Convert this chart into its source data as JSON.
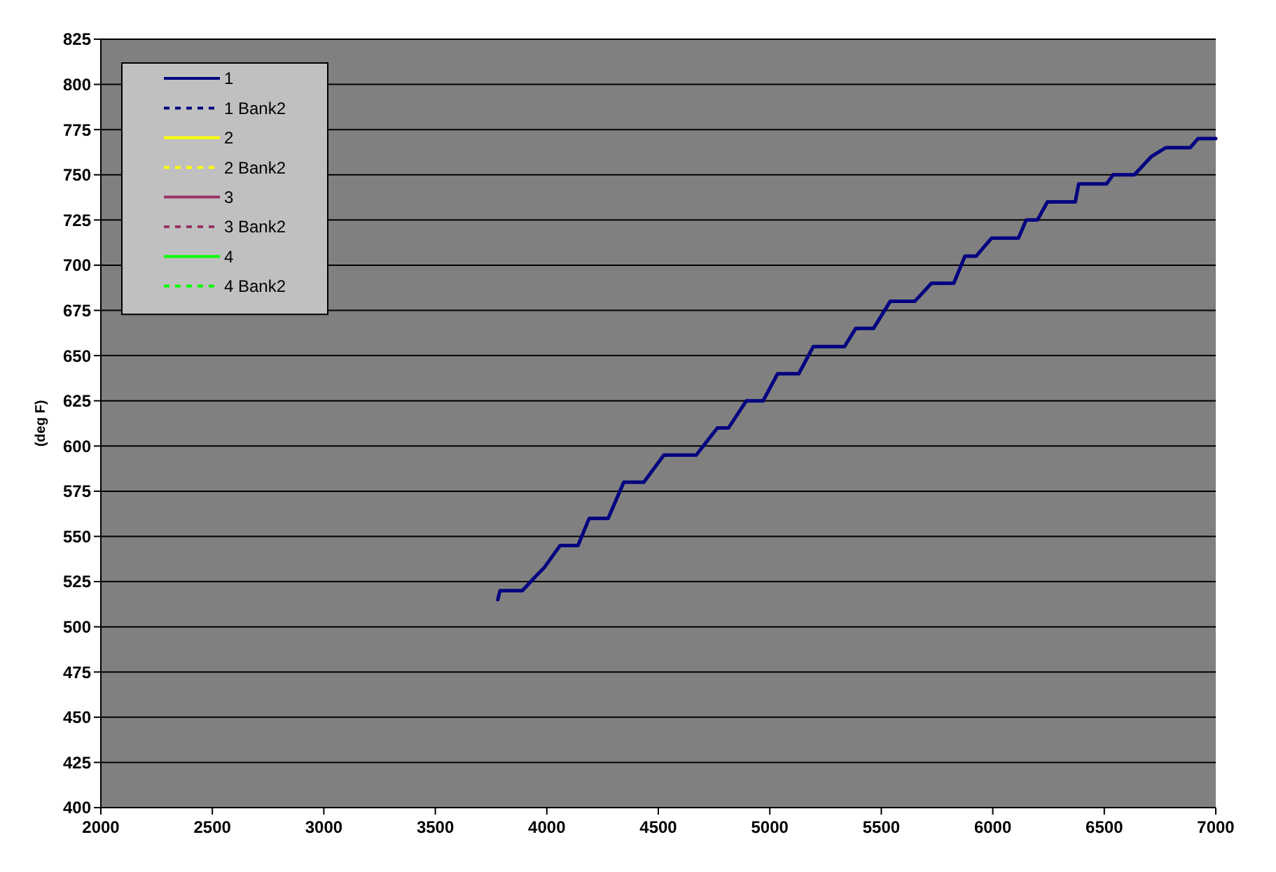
{
  "chart_data": {
    "type": "line",
    "ylabel": "(deg F)",
    "xlim": [
      2000,
      7000
    ],
    "xticks": [
      2000,
      2500,
      3000,
      3500,
      4000,
      4500,
      5000,
      5500,
      6000,
      6500,
      7000
    ],
    "ylim": [
      400,
      825
    ],
    "yticks": [
      400,
      425,
      450,
      475,
      500,
      525,
      550,
      575,
      600,
      625,
      650,
      675,
      700,
      725,
      750,
      775,
      800,
      825
    ],
    "grid": "y",
    "legend": "top left",
    "series": [
      {
        "name": "1",
        "color": "#000080",
        "line_style": "solid",
        "x": [
          3780,
          3790,
          3890,
          3966,
          3990,
          4060,
          4140,
          4190,
          4275,
          4345,
          4435,
          4525,
          4670,
          4765,
          4815,
          4895,
          4970,
          5035,
          5130,
          5195,
          5335,
          5385,
          5465,
          5540,
          5650,
          5725,
          5825,
          5875,
          5925,
          5995,
          6115,
          6150,
          6200,
          6245,
          6370,
          6385,
          6510,
          6540,
          6635,
          6710,
          6775,
          6885,
          6920,
          7000
        ],
        "values": [
          515,
          520,
          520,
          530,
          533,
          545,
          545,
          560,
          560,
          580,
          580,
          595,
          595,
          610,
          610,
          625,
          625,
          640,
          640,
          655,
          655,
          665,
          665,
          680,
          680,
          690,
          690,
          705,
          705,
          715,
          715,
          725,
          725,
          735,
          735,
          745,
          745,
          750,
          750,
          760,
          765,
          765,
          770,
          770
        ]
      },
      {
        "name": "1 Bank2",
        "color": "#000080",
        "line_style": "dashed"
      },
      {
        "name": "2",
        "color": "#ffff00",
        "line_style": "solid"
      },
      {
        "name": "2 Bank2",
        "color": "#ffff00",
        "line_style": "dashed"
      },
      {
        "name": "3",
        "color": "#993366",
        "line_style": "solid"
      },
      {
        "name": "3 Bank2",
        "color": "#993366",
        "line_style": "dashed"
      },
      {
        "name": "4",
        "color": "#00ff00",
        "line_style": "solid"
      },
      {
        "name": "4 Bank2",
        "color": "#00ff00",
        "line_style": "dashed"
      }
    ]
  }
}
